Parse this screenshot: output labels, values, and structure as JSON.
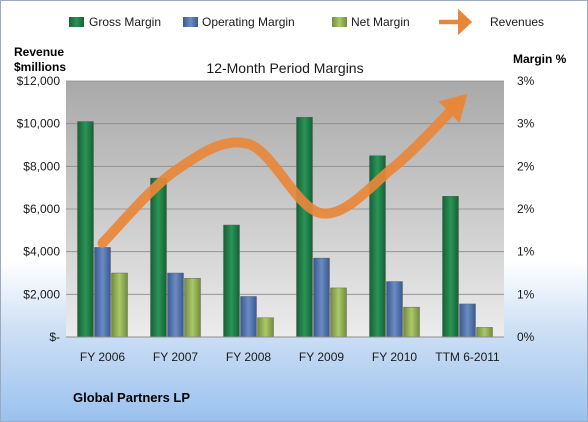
{
  "legend": [
    {
      "name": "Gross Margin",
      "color": "#1e7a45",
      "shape": "square"
    },
    {
      "name": "Operating Margin",
      "color": "#4a6ea8",
      "shape": "square"
    },
    {
      "name": "Net Margin",
      "color": "#8fae4f",
      "shape": "square"
    },
    {
      "name": "Revenues",
      "color": "#e8873a",
      "shape": "arrow"
    }
  ],
  "left_axis_title": [
    "Revenue",
    "$millions"
  ],
  "right_axis_title": "Margin %",
  "footer": "Global Partners LP",
  "chart_data": {
    "type": "bar",
    "title": "12-Month Period Margins",
    "categories": [
      "FY 2006",
      "FY 2007",
      "FY 2008",
      "FY 2009",
      "FY 2010",
      "TTM 6-2011"
    ],
    "left_ticks": [
      "$-",
      "$2,000",
      "$4,000",
      "$6,000",
      "$8,000",
      "$10,000",
      "$12,000"
    ],
    "right_ticks": [
      "0%",
      "1%",
      "1%",
      "2%",
      "2%",
      "3%",
      "3%"
    ],
    "ylim": [
      0,
      12000
    ],
    "bar_series": [
      {
        "name": "Gross Margin",
        "color": "#1e7a45",
        "values": [
          10100,
          7450,
          5250,
          10300,
          8500,
          6600
        ]
      },
      {
        "name": "Operating Margin",
        "color": "#4a6ea8",
        "values": [
          4200,
          3000,
          1900,
          3700,
          2600,
          1550
        ]
      },
      {
        "name": "Net Margin",
        "color": "#8fae4f",
        "values": [
          3000,
          2750,
          900,
          2300,
          1400,
          450
        ]
      }
    ],
    "line_series": {
      "name": "Revenues",
      "color": "#e8873a",
      "values": [
        4400,
        7800,
        9050,
        5800,
        8000,
        11400
      ]
    },
    "grid": true,
    "legend_position": "top"
  }
}
